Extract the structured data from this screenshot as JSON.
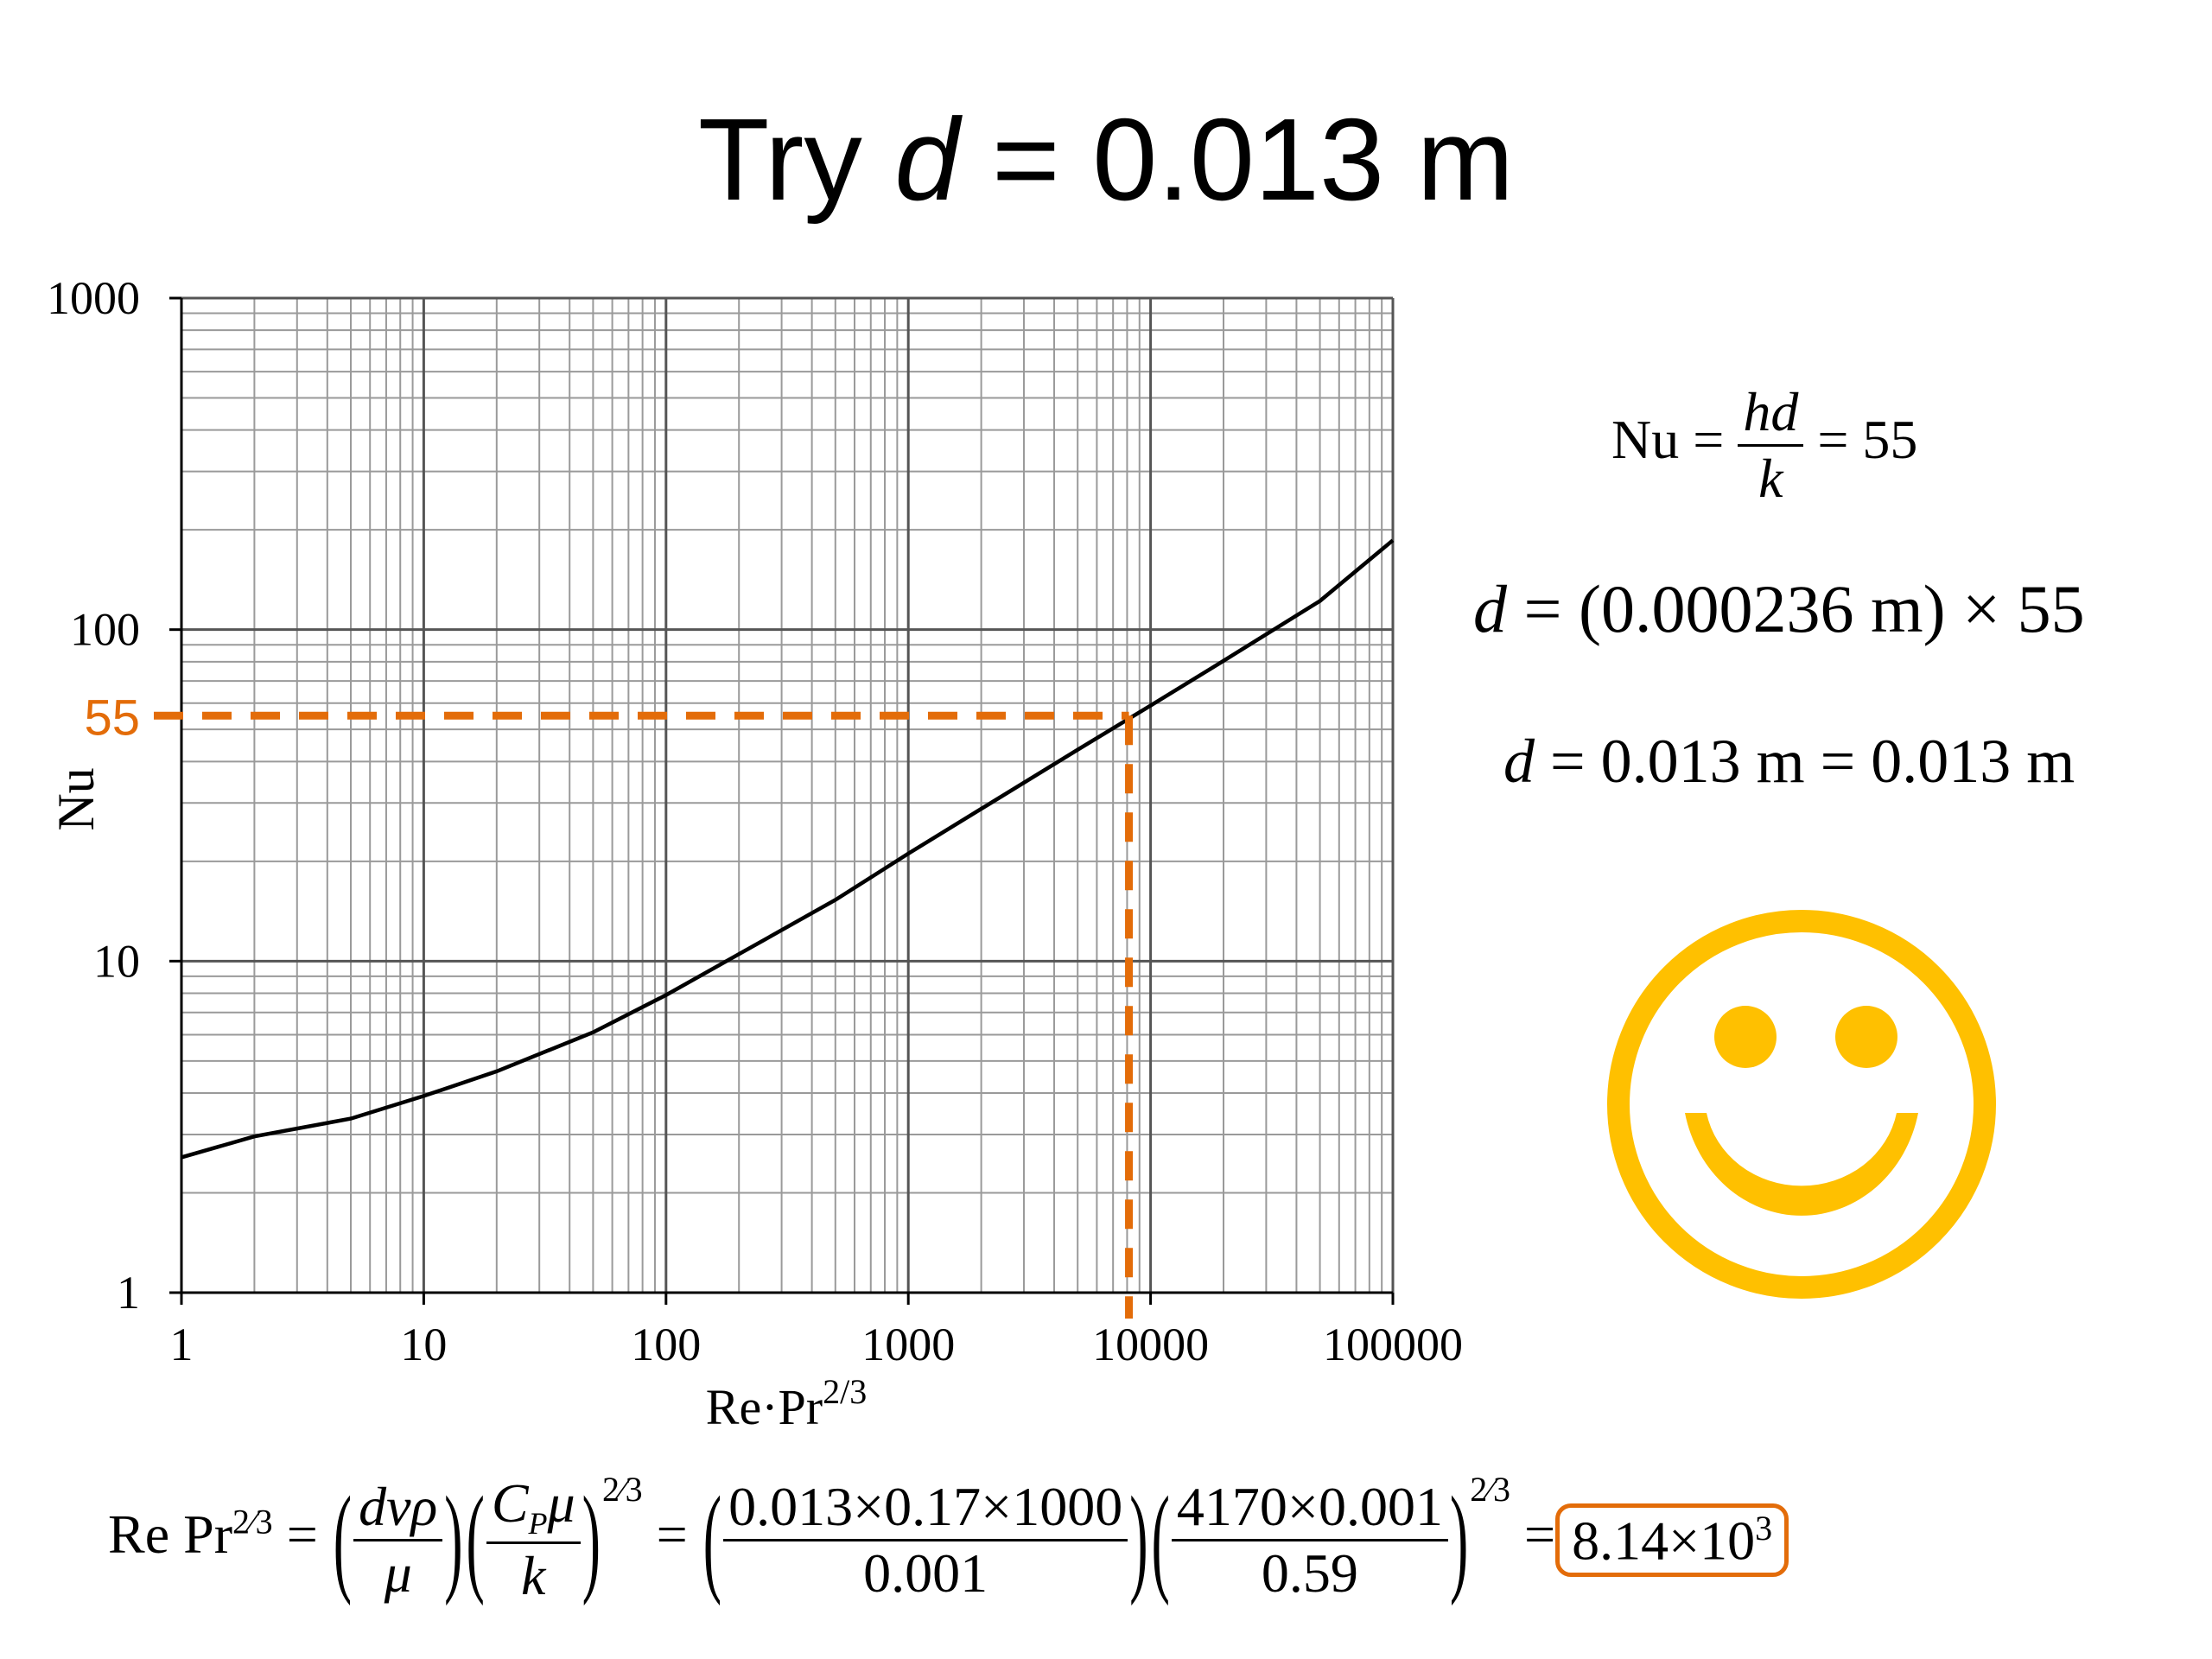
{
  "slide": {
    "title_prefix": "Try ",
    "title_var": "d",
    "title_suffix": " = 0.013 m"
  },
  "chart_data": {
    "type": "line",
    "xscale": "log",
    "yscale": "log",
    "xlim": [
      1,
      100000
    ],
    "ylim": [
      1,
      1000
    ],
    "grid": true,
    "xlabel": "Re·Pr",
    "xlabel_sup": "2/3",
    "ylabel": "Nu",
    "xticks": [
      "1",
      "10",
      "100",
      "1000",
      "10000",
      "100000"
    ],
    "yticks": [
      "1",
      "10",
      "100",
      "1000"
    ],
    "series": [
      {
        "color": "#000000",
        "x": [
          1,
          2,
          5,
          10,
          20,
          50,
          100,
          200,
          500,
          1000,
          2000,
          5000,
          10000,
          20000,
          50000,
          100000
        ],
        "y": [
          2.56,
          2.96,
          3.35,
          3.92,
          4.65,
          6.1,
          7.9,
          10.5,
          15.3,
          21.1,
          28.8,
          43.4,
          59.0,
          80.5,
          122,
          186
        ]
      }
    ],
    "annotation": {
      "label": "55",
      "y": 55,
      "x": 8140,
      "color": "#E36C09"
    }
  },
  "equations": {
    "nu_lhs": "Nu =",
    "nu_num": "hd",
    "nu_den": "k",
    "nu_rhs": "= 55",
    "d1_var": "d",
    "d1_rhs": " = (0.000236 m) × 55",
    "d2_var": "d",
    "d2_rhs": " = 0.013 m = 0.013 m",
    "repr_lhs": "Re Pr",
    "repr_exp": "2⁄3",
    "eq": "=",
    "f1_num": "dvρ",
    "f1_den": "μ",
    "f2_num": "C",
    "f2_sub": "P",
    "f2_num2": "μ",
    "f2_den": "k",
    "exp1": "2⁄3",
    "f3_num": "0.013×0.17×1000",
    "f3_den": "0.001",
    "f4_num": "4170×0.001",
    "f4_den": "0.59",
    "exp2": "2⁄3",
    "result": "8.14×10",
    "result_exp": "3"
  },
  "icon": {
    "name": "smiley-face",
    "color": "#FFC000"
  }
}
